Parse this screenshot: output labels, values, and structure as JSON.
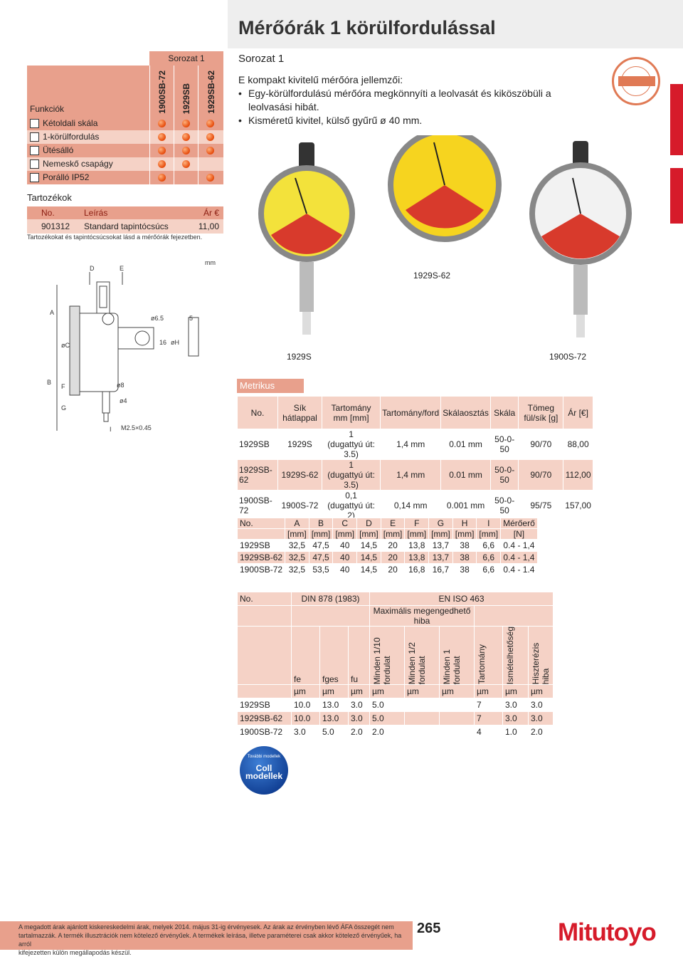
{
  "page": {
    "title": "Mérőórák 1 körülfordulással",
    "number": "265",
    "brand": "Mitutoyo",
    "footnote_line1": "A megadott árak ajánlott kiskereskedelmi árak, melyek 2014. május 31-ig érvényesek. Az árak az érvényben lévő ÁFA összegét nem",
    "footnote_line2": "tartalmazzák. A termék illusztrációk nem kötelező érvényűek. A termékek leírása, illetve paraméterei csak akkor kötelező érvényűek, ha arról",
    "footnote_line3": "kifejezetten külön megállapodás készül."
  },
  "functions": {
    "series_label": "Sorozat 1",
    "header": "Funkciók",
    "columns": [
      "1900SB-72",
      "1929SB",
      "1929SB-62"
    ],
    "rows": [
      {
        "label": "Kétoldali skála",
        "icon": "dial-icon",
        "dots": [
          true,
          true,
          true
        ]
      },
      {
        "label": "1-körülfordulás",
        "icon": "one-turn-icon",
        "dots": [
          true,
          true,
          true
        ]
      },
      {
        "label": "Ütésálló",
        "icon": "shockproof-icon",
        "dots": [
          true,
          true,
          true
        ]
      },
      {
        "label": "Nemeskő csapágy",
        "icon": "jewel-icon",
        "dots": [
          true,
          true,
          false
        ]
      },
      {
        "label": "Porálló IP52",
        "icon": "dustproof-icon",
        "dots": [
          true,
          false,
          true
        ]
      }
    ]
  },
  "accessories": {
    "title": "Tartozékok",
    "headers": {
      "no": "No.",
      "desc": "Leírás",
      "price": "Ár €"
    },
    "items": [
      {
        "no": "901312",
        "desc": "Standard tapintócsúcs",
        "price": "11,00"
      }
    ],
    "note": "Tartozékokat és tapintócsúcsokat lásd a mérőórák fejezetben."
  },
  "intro": {
    "series": "Sorozat 1",
    "heading": "E kompakt kivitelű mérőóra jellemzői:",
    "bullets": [
      "Egy-körülfordulású mérőóra megkönnyíti a leolvasát és kiköszöbüli a leolvasási hibát.",
      "Kisméretű kivitel, külső gyűrű ø 40 mm."
    ]
  },
  "drawing": {
    "unit": "mm",
    "labels": [
      "D",
      "E",
      "A",
      "øC",
      "ø6.5",
      "16",
      "øH",
      "5",
      "B",
      "F",
      "G",
      "ø8",
      "ø4",
      "M2.5×0.45",
      "I"
    ]
  },
  "gauge_labels": {
    "g1": "1929S",
    "g2": "1929S-62",
    "g3": "1900S-72"
  },
  "metrikus": {
    "title": "Metrikus",
    "headers": {
      "no": "No.",
      "flat": "Sík hátlappal",
      "range": "Tartomány mm [mm]",
      "rev": "Tartomány/ford",
      "div": "Skálaosztás",
      "scale": "Skála",
      "mass": "Tömeg fül/sík [g]",
      "price": "Ár [€]"
    },
    "rows": [
      {
        "no": "1929SB",
        "flat": "1929S",
        "range": "1",
        "stroke": "(dugattyú út: 3.5)",
        "rev": "1,4 mm",
        "div": "0.01 mm",
        "scale": "50-0-50",
        "mass": "90/70",
        "price": "88,00"
      },
      {
        "no": "1929SB-62",
        "flat": "1929S-62",
        "range": "1",
        "stroke": "(dugattyú út: 3.5)",
        "rev": "1,4 mm",
        "div": "0.01 mm",
        "scale": "50-0-50",
        "mass": "90/70",
        "price": "112,00"
      },
      {
        "no": "1900SB-72",
        "flat": "1900S-72",
        "range": "0,1",
        "stroke": "(dugattyú út: 2)",
        "rev": "0,14 mm",
        "div": "0.001 mm",
        "scale": "50-0-50",
        "mass": "95/75",
        "price": "157,00"
      }
    ]
  },
  "dimensions": {
    "headers": [
      "No.",
      "A",
      "B",
      "C",
      "D",
      "E",
      "F",
      "G",
      "H",
      "I",
      "Mérőerő"
    ],
    "units": [
      "",
      "[mm]",
      "[mm]",
      "[mm]",
      "[mm]",
      "[mm]",
      "[mm]",
      "[mm]",
      "[mm]",
      "[mm]",
      "[N]"
    ],
    "rows": [
      [
        "1929SB",
        "32,5",
        "47,5",
        "40",
        "14,5",
        "20",
        "13,8",
        "13,7",
        "38",
        "6,6",
        "0.4 - 1,4"
      ],
      [
        "1929SB-62",
        "32,5",
        "47,5",
        "40",
        "14,5",
        "20",
        "13,8",
        "13,7",
        "38",
        "6,6",
        "0.4 - 1,4"
      ],
      [
        "1900SB-72",
        "32,5",
        "53,5",
        "40",
        "14,5",
        "20",
        "16,8",
        "16,7",
        "38",
        "6,6",
        "0.4 - 1.4"
      ]
    ]
  },
  "errors": {
    "no": "No.",
    "din": "DIN 878 (1983)",
    "iso": "EN ISO 463",
    "max": "Maximális megengedhető hiba",
    "cols_din": [
      "fe",
      "fges",
      "fu"
    ],
    "cols_iso": [
      "Minden 1/10 fordulat",
      "Minden 1/2 fordulat",
      "Minden 1 fordulat",
      "Tartomány",
      "Ismételhetőség",
      "Hiszterézis hiba"
    ],
    "unit": "µm",
    "rows": [
      [
        "1929SB",
        "10.0",
        "13.0",
        "3.0",
        "5.0",
        "",
        "",
        "7",
        "3.0",
        "3.0"
      ],
      [
        "1929SB-62",
        "10.0",
        "13.0",
        "3.0",
        "5.0",
        "",
        "",
        "7",
        "3.0",
        "3.0"
      ],
      [
        "1900SB-72",
        "3.0",
        "5.0",
        "2.0",
        "2.0",
        "",
        "",
        "4",
        "1.0",
        "2.0"
      ]
    ]
  },
  "coll": {
    "top": "További modellek",
    "name": "Coll modellek"
  },
  "colors": {
    "accent": "#e8a08c",
    "light": "#f5d2c6",
    "red": "#d61b2a"
  }
}
